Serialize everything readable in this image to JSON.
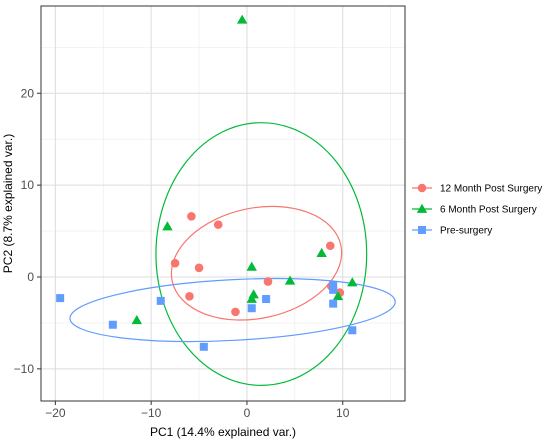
{
  "chart_data": {
    "type": "scatter",
    "title": "",
    "xlabel": "PC1 (14.4% explained var.)",
    "ylabel": "PC2 (8.7% explained var.)",
    "xlim": [
      -21.5,
      16.5
    ],
    "ylim": [
      -13.5,
      29.5
    ],
    "xticks": [
      -20,
      -10,
      0,
      10
    ],
    "yticks": [
      -10,
      0,
      10,
      20
    ],
    "grid": true,
    "legend_position": "right",
    "series": [
      {
        "name": "12 Month Post Surgery",
        "color": "#F8766D",
        "marker": "circle",
        "points": [
          [
            -5.8,
            6.6
          ],
          [
            -3.0,
            5.7
          ],
          [
            -7.5,
            1.5
          ],
          [
            -5.0,
            1.0
          ],
          [
            -6.0,
            -2.1
          ],
          [
            -1.2,
            -3.8
          ],
          [
            2.2,
            -0.5
          ],
          [
            8.7,
            3.4
          ],
          [
            9.7,
            -1.7
          ],
          [
            8.8,
            -1.0
          ]
        ],
        "ellipse": {
          "cx": 1.0,
          "cy": 1.5,
          "rx": 9.0,
          "ry": 6.0,
          "angle_deg": -12
        }
      },
      {
        "name": "6 Month Post Surgery",
        "color": "#00BA38",
        "marker": "triangle",
        "points": [
          [
            -0.5,
            28.0
          ],
          [
            -8.3,
            5.5
          ],
          [
            7.8,
            2.6
          ],
          [
            0.5,
            1.1
          ],
          [
            4.5,
            -0.4
          ],
          [
            11.0,
            -0.6
          ],
          [
            0.7,
            -1.9
          ],
          [
            0.5,
            -2.4
          ],
          [
            9.5,
            -2.1
          ],
          [
            -11.5,
            -4.7
          ]
        ],
        "ellipse": {
          "cx": 1.5,
          "cy": 2.5,
          "rx": 11.0,
          "ry": 14.3,
          "angle_deg": 0
        }
      },
      {
        "name": "Pre-surgery",
        "color": "#619CFF",
        "marker": "square",
        "points": [
          [
            -19.5,
            -2.3
          ],
          [
            -14.0,
            -5.2
          ],
          [
            -9.0,
            -2.6
          ],
          [
            -4.5,
            -7.6
          ],
          [
            0.5,
            -3.4
          ],
          [
            2.0,
            -2.4
          ],
          [
            9.0,
            -0.9
          ],
          [
            9.0,
            -1.4
          ],
          [
            9.0,
            -2.9
          ],
          [
            11.0,
            -5.8
          ]
        ],
        "ellipse": {
          "cx": -1.5,
          "cy": -3.6,
          "rx": 17.0,
          "ry": 3.3,
          "angle_deg": -3
        }
      }
    ]
  }
}
